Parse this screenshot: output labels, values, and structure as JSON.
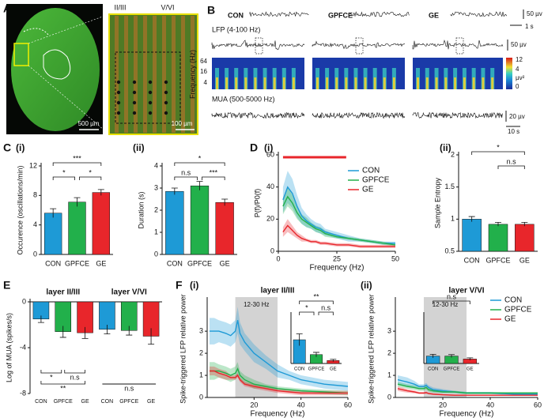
{
  "histology": {
    "panel": "A",
    "scale_left": "500 µm",
    "scale_right": "100 µm",
    "layers": [
      "II/III",
      "V/VI"
    ]
  },
  "recordings": {
    "panel": "B",
    "conditions": [
      "CON",
      "GPFCE",
      "GE"
    ],
    "lfp_label": "LFP (4-100 Hz)",
    "mua_label": "MUA (500-5000 Hz)",
    "scale_top": "50 µv",
    "time_top": "1 s",
    "scale_lfp": "50 µv",
    "freq_label": "Frequency (Hz)",
    "freq_ticks": [
      64,
      16,
      4
    ],
    "colorbar_ticks": [
      12,
      4,
      0
    ],
    "colorbar_unit": "µv²",
    "scale_mua": "20 µv",
    "time_bottom": "10 s"
  },
  "chart_data": [
    {
      "type": "bar",
      "panel": "C",
      "subpanel": "(i)",
      "ylabel": "Occurence (oscillations/min)",
      "categories": [
        "CON",
        "GPFCE",
        "GE"
      ],
      "values": [
        5.6,
        7.1,
        8.4
      ],
      "errors": [
        0.6,
        0.6,
        0.4
      ],
      "colors": [
        "#1e9ad6",
        "#22b04b",
        "#e8262b"
      ],
      "ylim": [
        0,
        12
      ],
      "yticks": [
        0,
        4,
        8,
        12
      ],
      "significance": [
        "***",
        "*",
        "*"
      ]
    },
    {
      "type": "bar",
      "subpanel": "(ii)",
      "ylabel": "Duration (s)",
      "categories": [
        "CON",
        "GPFCE",
        "GE"
      ],
      "values": [
        2.85,
        3.1,
        2.35
      ],
      "errors": [
        0.15,
        0.2,
        0.15
      ],
      "colors": [
        "#1e9ad6",
        "#22b04b",
        "#e8262b"
      ],
      "ylim": [
        0,
        4
      ],
      "yticks": [
        0,
        1,
        2,
        3,
        4
      ],
      "significance": [
        "*",
        "n.s",
        "***"
      ]
    },
    {
      "type": "line",
      "panel": "D",
      "subpanel": "(i)",
      "ylabel": "P(f)/P0(f)",
      "xlabel": "Frequency (Hz)",
      "x": [
        2,
        4,
        6,
        8,
        10,
        12,
        14,
        16,
        18,
        20,
        25,
        30,
        35,
        40,
        45,
        50
      ],
      "xlim": [
        0,
        50
      ],
      "xticks": [
        0,
        25,
        50
      ],
      "ylim": [
        0,
        60
      ],
      "yticks": [
        0,
        20,
        40,
        60
      ],
      "legend": "upper right",
      "significance_x": [
        2,
        29
      ],
      "significance_color": "#e8262b",
      "series": [
        {
          "name": "CON",
          "color": "#1e9ad6",
          "values": [
            32,
            40,
            36,
            28,
            22,
            19,
            17,
            15,
            14,
            12,
            10,
            8,
            7,
            6,
            5,
            5
          ],
          "errors": [
            8,
            10,
            9,
            7,
            5,
            4,
            3,
            3,
            3,
            2,
            2,
            2,
            1,
            1,
            1,
            1
          ]
        },
        {
          "name": "GPFCE",
          "color": "#22b04b",
          "values": [
            28,
            34,
            30,
            24,
            20,
            18,
            16,
            14,
            13,
            11,
            9,
            8,
            7,
            6,
            5,
            4
          ],
          "errors": [
            5,
            6,
            5,
            4,
            3,
            3,
            2,
            2,
            2,
            2,
            1,
            1,
            1,
            1,
            1,
            1
          ]
        },
        {
          "name": "GE",
          "color": "#e8262b",
          "values": [
            12,
            16,
            13,
            10,
            8,
            7,
            6,
            6,
            5,
            5,
            4,
            4,
            3,
            3,
            3,
            3
          ],
          "errors": [
            3,
            4,
            3,
            2,
            2,
            1,
            1,
            1,
            1,
            1,
            1,
            1,
            1,
            1,
            1,
            1
          ]
        }
      ]
    },
    {
      "type": "bar",
      "subpanel": "(ii)",
      "ylabel": "Sample Entropy",
      "categories": [
        "CON",
        "GPFCE",
        "GE"
      ],
      "values": [
        1.0,
        0.92,
        0.92
      ],
      "errors": [
        0.04,
        0.03,
        0.03
      ],
      "colors": [
        "#1e9ad6",
        "#22b04b",
        "#e8262b"
      ],
      "ylim": [
        0.5,
        2
      ],
      "yticks": [
        0.5,
        1,
        1.5,
        2
      ],
      "significance": [
        "*",
        "n.s"
      ]
    },
    {
      "type": "grouped_bar",
      "panel": "E",
      "ylabel": "Log of MUA (spikes/s)",
      "categories": [
        "CON",
        "GPFCE",
        "GE"
      ],
      "colors": [
        "#1e9ad6",
        "#22b04b",
        "#e8262b"
      ],
      "ylim": [
        -8,
        0
      ],
      "yticks": [
        -8,
        -4,
        0
      ],
      "groups": [
        {
          "name": "layer II/III",
          "values": [
            -1.5,
            -2.6,
            -2.7
          ],
          "errors": [
            0.3,
            0.5,
            0.5
          ]
        },
        {
          "name": "layer V/VI",
          "values": [
            -2.4,
            -2.5,
            -3.0
          ],
          "errors": [
            0.4,
            0.4,
            0.7
          ]
        }
      ],
      "significance": [
        "*",
        "n.s",
        "**",
        "n.s"
      ]
    },
    {
      "type": "line",
      "panel": "F",
      "subpanel": "(i)",
      "title": "layer II/III",
      "ylabel": "Spike-triggered LFP relative power",
      "xlabel": "Frequency (Hz)",
      "x": [
        1,
        3,
        5,
        8,
        10,
        12,
        13,
        14,
        16,
        20,
        25,
        30,
        35,
        40,
        50,
        60
      ],
      "xlim": [
        0,
        60
      ],
      "xticks": [
        20,
        40,
        60
      ],
      "ylim": [
        0,
        4.4
      ],
      "yticks": [
        0,
        1,
        2,
        3
      ],
      "band": {
        "range": [
          12,
          30
        ],
        "label": "12-30 Hz"
      },
      "series": [
        {
          "name": "CON",
          "color": "#1e9ad6",
          "values": [
            3.0,
            3.0,
            3.0,
            2.9,
            2.8,
            3.0,
            3.5,
            2.9,
            2.5,
            2.0,
            1.6,
            1.2,
            1.0,
            0.8,
            0.6,
            0.5
          ],
          "errors": [
            0.6,
            0.6,
            0.5,
            0.5,
            0.5,
            0.5,
            0.6,
            0.5,
            0.4,
            0.4,
            0.3,
            0.3,
            0.2,
            0.2,
            0.2,
            0.2
          ]
        },
        {
          "name": "GPFCE",
          "color": "#22b04b",
          "values": [
            1.2,
            1.2,
            1.2,
            1.1,
            1.0,
            1.1,
            1.3,
            1.0,
            0.8,
            0.6,
            0.5,
            0.4,
            0.35,
            0.3,
            0.25,
            0.2
          ],
          "errors": [
            0.4,
            0.4,
            0.3,
            0.3,
            0.3,
            0.3,
            0.3,
            0.2,
            0.2,
            0.2,
            0.1,
            0.1,
            0.1,
            0.1,
            0.1,
            0.1
          ]
        },
        {
          "name": "GE",
          "color": "#e8262b",
          "values": [
            1.2,
            1.2,
            1.1,
            1.0,
            0.9,
            0.9,
            1.0,
            0.8,
            0.6,
            0.5,
            0.4,
            0.3,
            0.25,
            0.2,
            0.2,
            0.2
          ],
          "errors": [
            0.2,
            0.2,
            0.2,
            0.2,
            0.1,
            0.1,
            0.1,
            0.1,
            0.1,
            0.1,
            0.1,
            0.1,
            0.1,
            0.1,
            0.1,
            0.1
          ]
        }
      ],
      "inset": {
        "type": "bar",
        "categories": [
          "CON",
          "GPFCE",
          "GE"
        ],
        "values": [
          1.6,
          0.6,
          0.2
        ],
        "errors": [
          0.4,
          0.15,
          0.08
        ],
        "colors": [
          "#1e9ad6",
          "#22b04b",
          "#e8262b"
        ],
        "ylim": [
          0,
          4
        ],
        "significance": [
          "**",
          "*",
          "n.s"
        ]
      }
    },
    {
      "type": "line",
      "subpanel": "(ii)",
      "title": "layer V/VI",
      "ylabel": "Spike-triggered LFP relative power",
      "xlabel": "Frequency (Hz)",
      "x": [
        1,
        3,
        5,
        8,
        10,
        12,
        13,
        14,
        16,
        20,
        25,
        30,
        35,
        40,
        50,
        60
      ],
      "xlim": [
        0,
        60
      ],
      "xticks": [
        20,
        40,
        60
      ],
      "ylim": [
        0,
        4.4
      ],
      "yticks": [
        0,
        1,
        2,
        3
      ],
      "legend": "upper right",
      "band": {
        "range": [
          12,
          30
        ],
        "label": "12-30 Hz"
      },
      "series": [
        {
          "name": "CON",
          "color": "#1e9ad6",
          "values": [
            0.8,
            0.75,
            0.7,
            0.6,
            0.5,
            0.5,
            0.55,
            0.45,
            0.35,
            0.3,
            0.25,
            0.2,
            0.2,
            0.2,
            0.15,
            0.15
          ],
          "errors": [
            0.2,
            0.2,
            0.2,
            0.15,
            0.1,
            0.1,
            0.1,
            0.1,
            0.1,
            0.08,
            0.05,
            0.05,
            0.05,
            0.05,
            0.05,
            0.05
          ]
        },
        {
          "name": "GPFCE",
          "color": "#22b04b",
          "values": [
            0.6,
            0.55,
            0.5,
            0.45,
            0.4,
            0.4,
            0.45,
            0.35,
            0.3,
            0.25,
            0.25,
            0.2,
            0.2,
            0.2,
            0.2,
            0.2
          ],
          "errors": [
            0.1,
            0.1,
            0.1,
            0.1,
            0.1,
            0.1,
            0.1,
            0.08,
            0.08,
            0.05,
            0.05,
            0.05,
            0.05,
            0.05,
            0.05,
            0.05
          ]
        },
        {
          "name": "GE",
          "color": "#e8262b",
          "values": [
            0.4,
            0.35,
            0.3,
            0.25,
            0.2,
            0.2,
            0.22,
            0.18,
            0.15,
            0.12,
            0.1,
            0.1,
            0.1,
            0.1,
            0.1,
            0.1
          ],
          "errors": [
            0.1,
            0.1,
            0.08,
            0.06,
            0.05,
            0.05,
            0.05,
            0.04,
            0.04,
            0.03,
            0.03,
            0.03,
            0.03,
            0.03,
            0.03,
            0.03
          ]
        }
      ],
      "inset": {
        "type": "bar",
        "categories": [
          "CON",
          "GPFCE",
          "GE"
        ],
        "values": [
          0.5,
          0.5,
          0.3
        ],
        "errors": [
          0.12,
          0.1,
          0.08
        ],
        "colors": [
          "#1e9ad6",
          "#22b04b",
          "#e8262b"
        ],
        "ylim": [
          0,
          4
        ],
        "significance": [
          "n.s"
        ]
      }
    }
  ]
}
